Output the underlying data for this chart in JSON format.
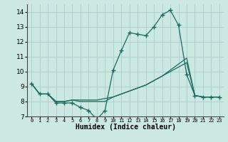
{
  "xlabel": "Humidex (Indice chaleur)",
  "x_values": [
    0,
    1,
    2,
    3,
    4,
    5,
    6,
    7,
    8,
    9,
    10,
    11,
    12,
    13,
    14,
    15,
    16,
    17,
    18,
    19,
    20,
    21,
    22,
    23
  ],
  "line1": [
    9.2,
    8.5,
    8.5,
    7.9,
    7.9,
    7.9,
    7.6,
    7.4,
    6.8,
    7.4,
    10.1,
    11.4,
    12.6,
    12.5,
    12.4,
    13.0,
    13.8,
    14.1,
    13.1,
    9.8,
    8.4,
    8.3,
    8.3,
    8.3
  ],
  "line2": [
    9.2,
    8.5,
    8.5,
    8.0,
    8.0,
    8.1,
    8.0,
    8.0,
    8.0,
    8.0,
    8.3,
    8.5,
    8.7,
    8.9,
    9.1,
    9.4,
    9.7,
    10.1,
    10.5,
    10.9,
    8.4,
    8.3,
    8.3,
    8.3
  ],
  "line3": [
    9.2,
    8.5,
    8.5,
    8.0,
    8.0,
    8.1,
    8.1,
    8.1,
    8.1,
    8.2,
    8.3,
    8.5,
    8.7,
    8.9,
    9.1,
    9.4,
    9.7,
    10.0,
    10.3,
    10.6,
    8.4,
    8.3,
    8.3,
    8.3
  ],
  "ylim": [
    7,
    14.5
  ],
  "yticks": [
    7,
    8,
    9,
    10,
    11,
    12,
    13,
    14
  ],
  "line_color": "#1a6b5e",
  "bg_color": "#cce8e2",
  "grid_color": "#aacccc",
  "marker": "+",
  "markersize": 4,
  "linewidth": 0.9
}
